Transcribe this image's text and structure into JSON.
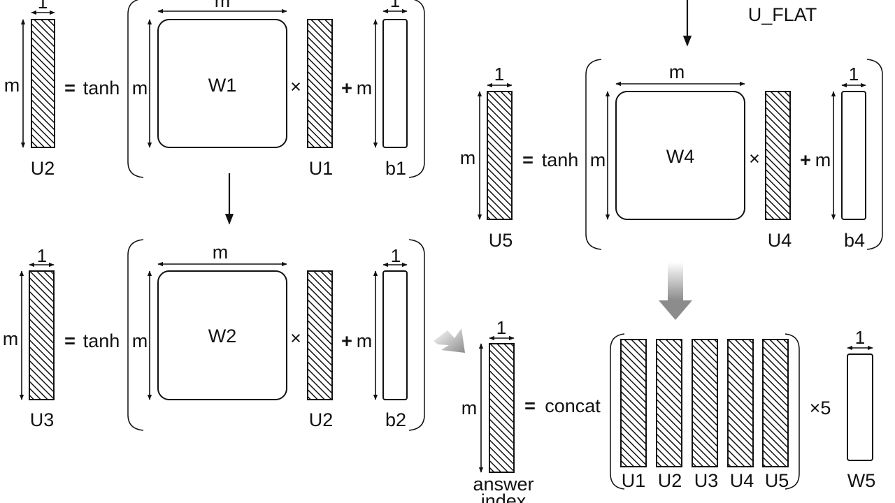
{
  "colors": {
    "stroke": "#111111",
    "background": "#ffffff",
    "arrow_gray": "#8c8c8c"
  },
  "symbols": {
    "m": "m",
    "one": "1",
    "equals": "=",
    "plus": "+",
    "times": "×",
    "tanh": "tanh",
    "concat": "concat"
  },
  "eq1": {
    "output": "U2",
    "weight": "W1",
    "input": "U1",
    "bias": "b1"
  },
  "eq2": {
    "output": "U3",
    "weight": "W2",
    "input": "U2",
    "bias": "b2"
  },
  "eq3": {
    "top_label": "U_FLAT",
    "output": "U5",
    "weight": "W4",
    "input": "U4",
    "bias": "b4"
  },
  "eq4": {
    "output_line1": "answer",
    "output_line2": "index",
    "vectors": [
      "U1",
      "U2",
      "U3",
      "U4",
      "U5"
    ],
    "times5": "×5",
    "weight": "W5"
  }
}
